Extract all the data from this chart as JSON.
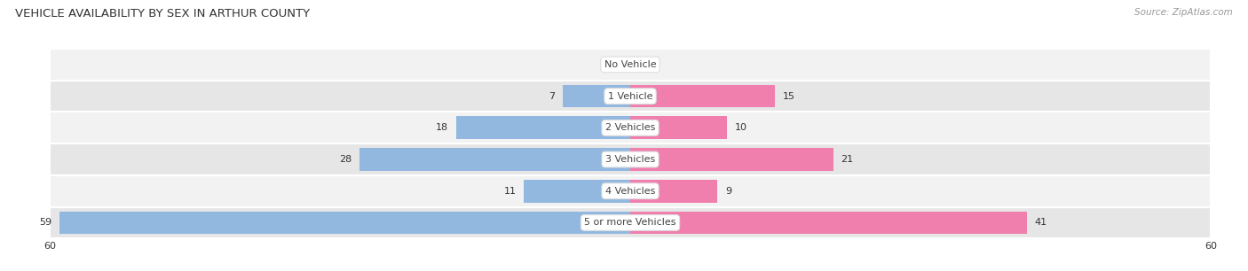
{
  "title": "VEHICLE AVAILABILITY BY SEX IN ARTHUR COUNTY",
  "source": "Source: ZipAtlas.com",
  "categories": [
    "No Vehicle",
    "1 Vehicle",
    "2 Vehicles",
    "3 Vehicles",
    "4 Vehicles",
    "5 or more Vehicles"
  ],
  "male_values": [
    0,
    7,
    18,
    28,
    11,
    59
  ],
  "female_values": [
    0,
    15,
    10,
    21,
    9,
    41
  ],
  "male_color": "#92B8E0",
  "female_color": "#F07FAE",
  "row_light": "#F2F2F2",
  "row_dark": "#E6E6E6",
  "row_sep_color": "#CCCCCC",
  "white": "#FFFFFF",
  "max_value": 60,
  "title_fontsize": 9.5,
  "label_fontsize": 8,
  "axis_fontsize": 8,
  "legend_fontsize": 8,
  "bar_height": 0.72,
  "label_color": "#333333",
  "center_label_color": "#444444",
  "source_color": "#999999",
  "background_color": "#FFFFFF"
}
